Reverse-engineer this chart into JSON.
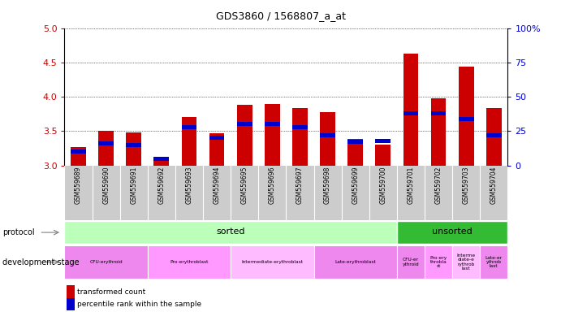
{
  "title": "GDS3860 / 1568807_a_at",
  "samples": [
    "GSM559689",
    "GSM559690",
    "GSM559691",
    "GSM559692",
    "GSM559693",
    "GSM559694",
    "GSM559695",
    "GSM559696",
    "GSM559697",
    "GSM559698",
    "GSM559699",
    "GSM559700",
    "GSM559701",
    "GSM559702",
    "GSM559703",
    "GSM559704"
  ],
  "transformed_count": [
    3.27,
    3.5,
    3.48,
    3.12,
    3.71,
    3.47,
    3.88,
    3.89,
    3.84,
    3.77,
    3.39,
    3.3,
    4.63,
    3.98,
    4.44,
    3.83
  ],
  "percentile_rank": [
    10,
    16,
    15,
    5,
    28,
    20,
    30,
    30,
    28,
    22,
    17,
    18,
    38,
    38,
    34,
    22
  ],
  "ylim_left": [
    3.0,
    5.0
  ],
  "ylim_right": [
    0,
    100
  ],
  "yticks_left": [
    3.0,
    3.5,
    4.0,
    4.5,
    5.0
  ],
  "yticks_right": [
    0,
    25,
    50,
    75,
    100
  ],
  "protocol": {
    "sorted": {
      "start": 0,
      "end": 12,
      "label": "sorted",
      "color": "#bbffbb"
    },
    "unsorted": {
      "start": 12,
      "end": 16,
      "label": "unsorted",
      "color": "#33bb33"
    }
  },
  "dev_stages": [
    {
      "label": "CFU-erythroid",
      "start": 0,
      "end": 3,
      "color": "#ee88ee"
    },
    {
      "label": "Pro-erythroblast",
      "start": 3,
      "end": 6,
      "color": "#ff99ff"
    },
    {
      "label": "Intermediate-erythroblast",
      "start": 6,
      "end": 9,
      "color": "#ffbbff"
    },
    {
      "label": "Late-erythroblast",
      "start": 9,
      "end": 12,
      "color": "#ee88ee"
    },
    {
      "label": "CFU-er\nythroid",
      "start": 12,
      "end": 13,
      "color": "#ee88ee"
    },
    {
      "label": "Pro-ery\nthrobla\nst",
      "start": 13,
      "end": 14,
      "color": "#ff99ff"
    },
    {
      "label": "Interme\ndiate-e\nrythrob\nlast",
      "start": 14,
      "end": 15,
      "color": "#ffbbff"
    },
    {
      "label": "Late-er\nythrob\nlast",
      "start": 15,
      "end": 16,
      "color": "#ee88ee"
    }
  ],
  "bar_color": "#cc0000",
  "percentile_color": "#0000cc",
  "xlabels_bg": "#cccccc",
  "left_label_color": "#555555"
}
